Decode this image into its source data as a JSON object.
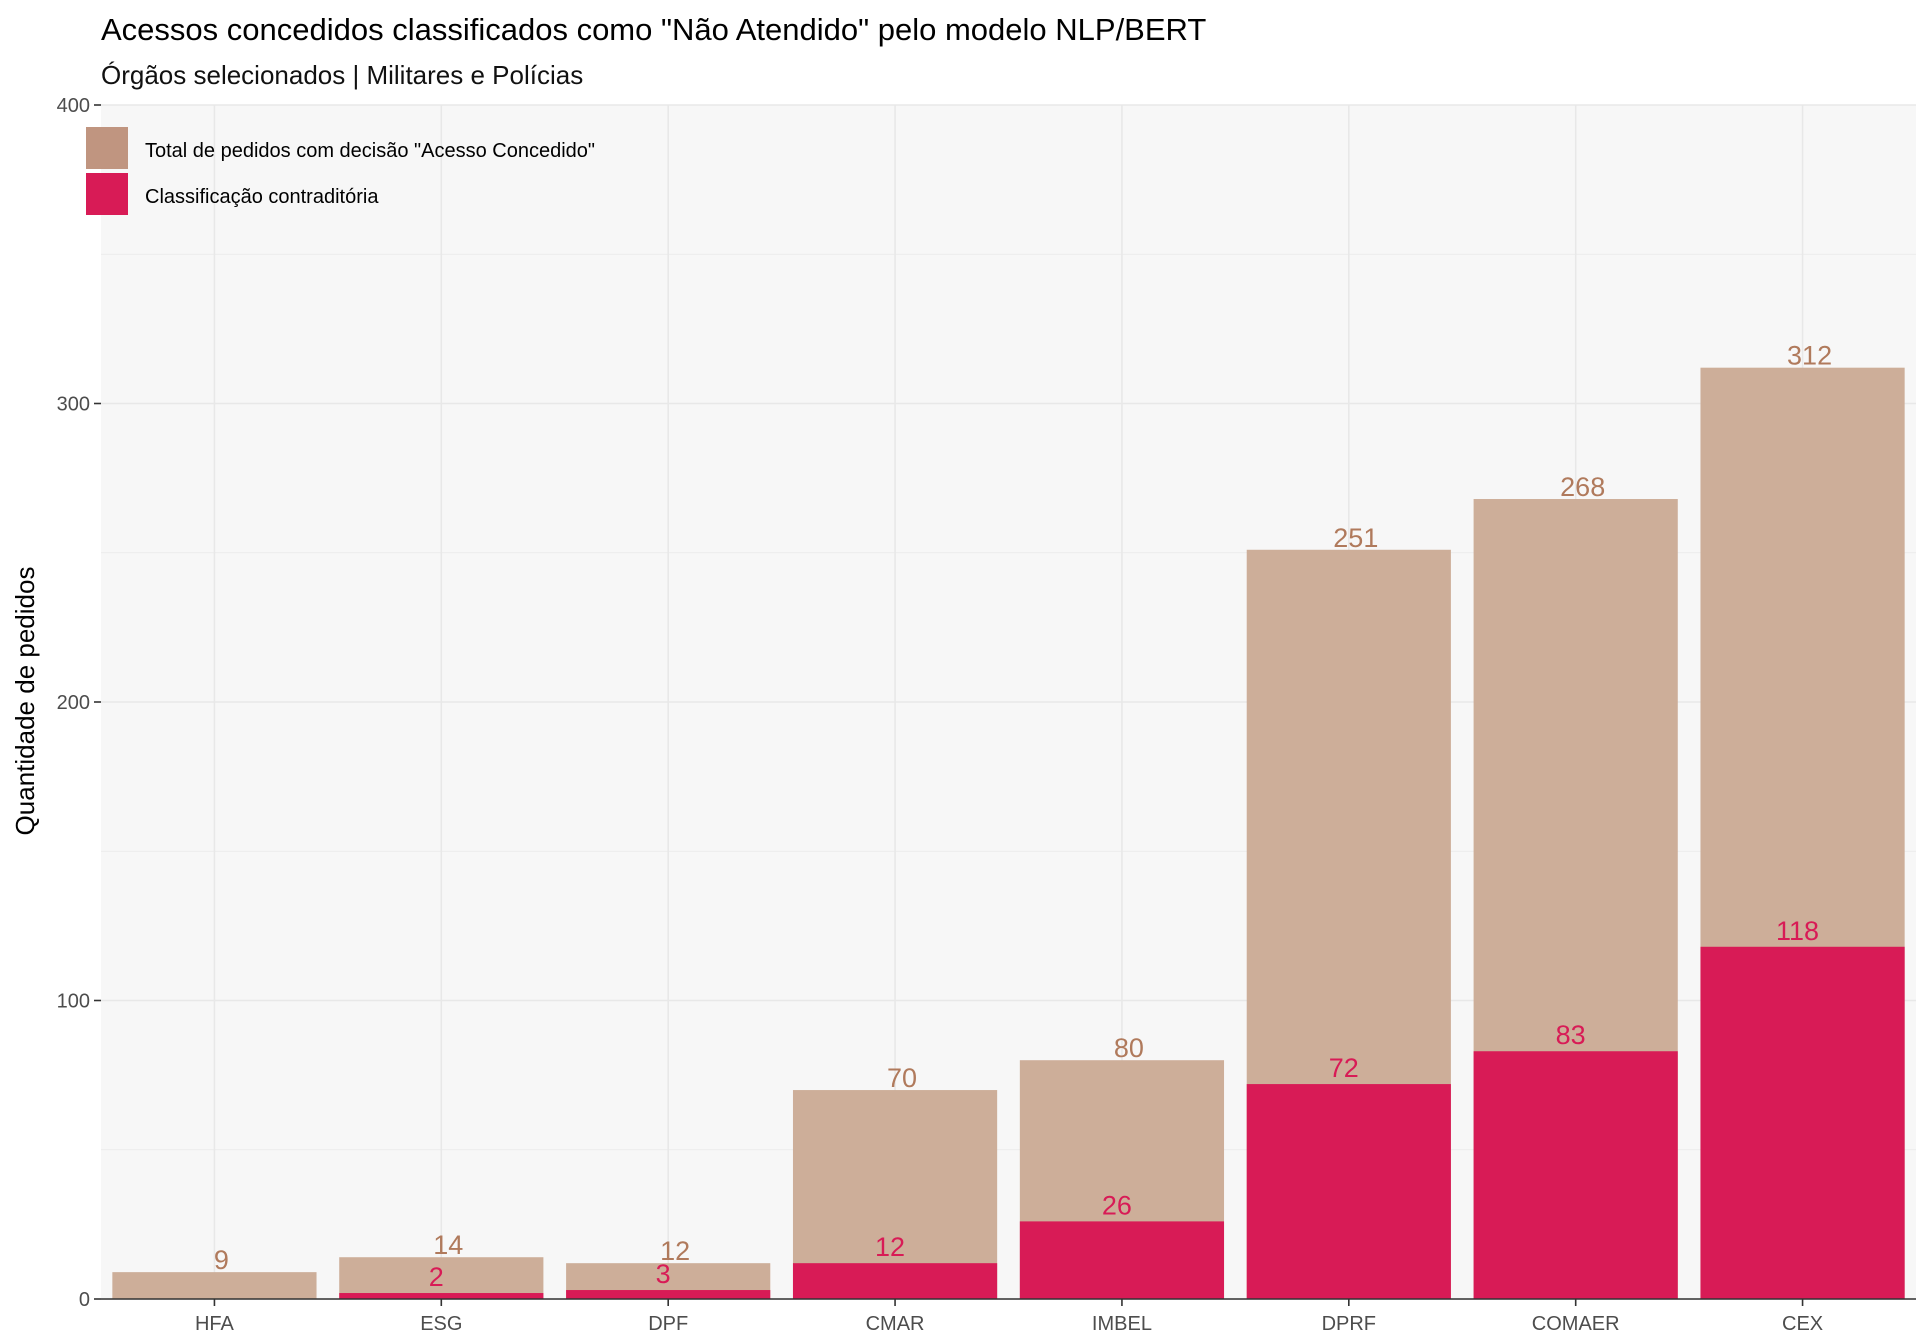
{
  "chart_data": {
    "type": "bar",
    "title": "Acessos concedidos classificados como \"Não Atendido\" pelo modelo NLP/BERT",
    "subtitle": "Órgãos selecionados | Militares e Polícias",
    "xlabel": "",
    "ylabel": "Quantidade de pedidos",
    "ylim": [
      0,
      400
    ],
    "yticks": [
      0,
      100,
      200,
      300,
      400
    ],
    "grid": true,
    "legend_position": "top-left",
    "categories": [
      "HFA",
      "ESG",
      "DPF",
      "CMAR",
      "IMBEL",
      "DPRF",
      "COMAER",
      "CEX"
    ],
    "series": [
      {
        "name": "Total de pedidos com decisão \"Acesso Concedido\"",
        "values": [
          9,
          14,
          12,
          70,
          80,
          251,
          268,
          312
        ],
        "color": "#c09580",
        "bar_color": "#cdae99",
        "label_color": "#b07a5c"
      },
      {
        "name": "Classificação contraditória",
        "values": [
          null,
          2,
          3,
          12,
          26,
          72,
          83,
          118
        ],
        "color": "#d81b56",
        "bar_color": "#d81b56",
        "label_color": "#d81b56"
      }
    ],
    "panel_background": "#f7f7f7",
    "grid_color": "#e8e8e8"
  }
}
